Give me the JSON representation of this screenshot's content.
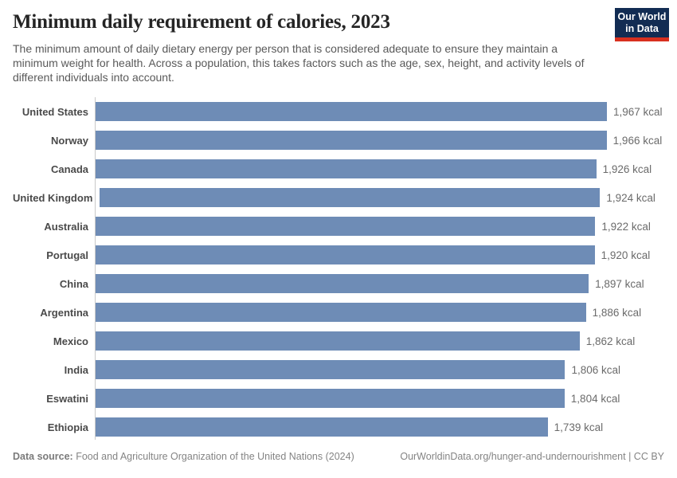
{
  "header": {
    "title": "Minimum daily requirement of calories, 2023",
    "subtitle": "The minimum amount of daily dietary energy per person that is considered adequate to ensure they maintain a minimum weight for health. Across a population, this takes factors such as the age, sex, height, and activity levels of different individuals into account.",
    "logo": {
      "line1": "Our World",
      "line2": "in Data",
      "bg_color": "#122c53",
      "accent_color": "#d8301f"
    }
  },
  "chart_data": {
    "type": "bar",
    "orientation": "horizontal",
    "title": "Minimum daily requirement of calories, 2023",
    "unit": "kcal",
    "categories": [
      "United States",
      "Norway",
      "Canada",
      "United Kingdom",
      "Australia",
      "Portugal",
      "China",
      "Argentina",
      "Mexico",
      "India",
      "Eswatini",
      "Ethiopia"
    ],
    "values": [
      1967,
      1966,
      1926,
      1924,
      1922,
      1920,
      1897,
      1886,
      1862,
      1806,
      1804,
      1739
    ],
    "value_labels": [
      "1,967 kcal",
      "1,966 kcal",
      "1,926 kcal",
      "1,924 kcal",
      "1,922 kcal",
      "1,920 kcal",
      "1,897 kcal",
      "1,886 kcal",
      "1,862 kcal",
      "1,806 kcal",
      "1,804 kcal",
      "1,739 kcal"
    ],
    "bar_color": "#6e8cb6",
    "xlim": [
      0,
      1967
    ],
    "grid": false,
    "legend": null
  },
  "footer": {
    "source_label": "Data source:",
    "source_text": "Food and Agriculture Organization of the United Nations (2024)",
    "link_text": "OurWorldinData.org/hunger-and-undernourishment | CC BY"
  }
}
